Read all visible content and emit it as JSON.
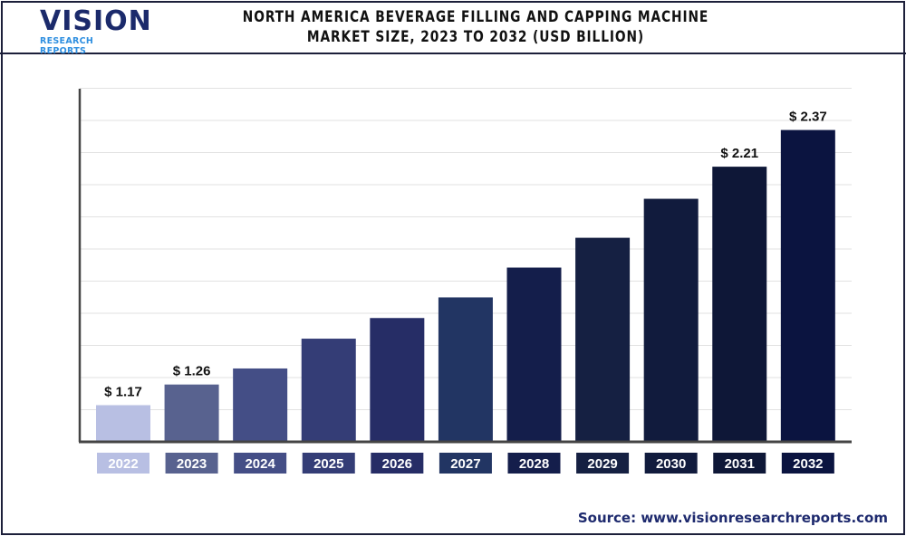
{
  "logo": {
    "main": "VISION",
    "sub": "RESEARCH REPORTS"
  },
  "source": "Source: www.visionresearchreports.com",
  "chart_data": {
    "type": "bar",
    "title": "NORTH AMERICA BEVERAGE FILLING AND CAPPING MACHINE MARKET SIZE, 2023 TO 2032 (USD BILLION)",
    "xlabel": "",
    "ylabel": "",
    "categories": [
      "2022",
      "2023",
      "2024",
      "2025",
      "2026",
      "2027",
      "2028",
      "2029",
      "2030",
      "2031",
      "2032"
    ],
    "values": [
      1.17,
      1.26,
      1.33,
      1.46,
      1.55,
      1.64,
      1.77,
      1.9,
      2.07,
      2.21,
      2.37
    ],
    "data_labels": [
      "$ 1.17",
      "$ 1.26",
      "",
      "",
      "",
      "",
      "",
      "",
      "",
      "$ 2.21",
      "$ 2.37"
    ],
    "colors": [
      "#b8bfe3",
      "#58628f",
      "#444e86",
      "#343d76",
      "#262d66",
      "#223563",
      "#141e4b",
      "#152042",
      "#111b3d",
      "#0e1737",
      "#0b1440"
    ],
    "ylim": [
      1.01,
      2.55
    ],
    "grid": true
  }
}
